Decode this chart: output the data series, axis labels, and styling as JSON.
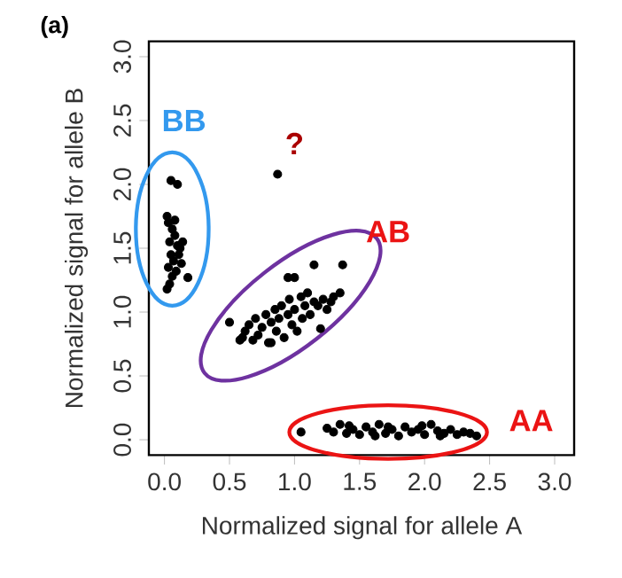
{
  "chart_data": {
    "type": "scatter",
    "xlabel": "Normalized signal for allele A",
    "ylabel": "Normalized signal for allele B",
    "annotations": [
      "(a)",
      "BB",
      "?",
      "AB",
      "AA"
    ],
    "x": [
      0.05,
      0.1,
      0.02,
      0.03,
      0.06,
      0.08,
      0.04,
      0.1,
      0.12,
      0.05,
      0.07,
      0.03,
      0.09,
      0.11,
      0.06,
      0.04,
      0.08,
      0.18,
      0.02,
      0.14,
      0.13,
      0.5,
      0.58,
      0.6,
      0.62,
      0.65,
      0.68,
      0.7,
      0.72,
      0.75,
      0.78,
      0.8,
      0.82,
      0.85,
      0.86,
      0.88,
      0.9,
      0.92,
      0.95,
      0.96,
      0.98,
      1.0,
      1.02,
      1.05,
      1.06,
      1.08,
      1.1,
      1.12,
      1.15,
      1.18,
      1.2,
      1.22,
      1.25,
      1.28,
      1.3,
      1.35,
      1.15,
      1.37,
      0.95,
      1.0,
      0.82,
      1.05,
      1.25,
      1.3,
      1.35,
      1.4,
      1.45,
      1.5,
      1.55,
      1.6,
      1.65,
      1.7,
      1.75,
      1.8,
      1.85,
      1.9,
      1.95,
      2.0,
      2.05,
      2.1,
      2.15,
      2.2,
      2.25,
      2.3,
      2.35,
      2.4,
      1.42,
      1.72,
      1.98,
      1.62,
      2.12,
      0.87
    ],
    "values": [
      2.03,
      2.0,
      1.75,
      1.7,
      1.65,
      1.6,
      1.55,
      1.52,
      1.5,
      1.45,
      1.4,
      1.35,
      1.32,
      1.45,
      1.28,
      1.22,
      1.72,
      1.27,
      1.18,
      1.55,
      1.38,
      0.92,
      0.78,
      0.8,
      0.85,
      0.9,
      0.78,
      0.95,
      0.82,
      0.88,
      0.98,
      0.76,
      0.92,
      1.02,
      0.85,
      0.95,
      1.05,
      0.8,
      0.98,
      1.1,
      0.9,
      1.02,
      0.85,
      1.12,
      0.95,
      1.05,
      1.15,
      0.98,
      1.08,
      1.05,
      0.87,
      1.1,
      1.02,
      1.08,
      1.12,
      1.15,
      1.37,
      1.37,
      1.27,
      1.27,
      0.76,
      0.06,
      0.09,
      0.06,
      0.12,
      0.05,
      0.08,
      0.04,
      0.1,
      0.06,
      0.12,
      0.05,
      0.08,
      0.03,
      0.1,
      0.06,
      0.08,
      0.04,
      0.12,
      0.07,
      0.05,
      0.08,
      0.04,
      0.06,
      0.05,
      0.03,
      0.11,
      0.1,
      0.11,
      0.03,
      0.03,
      2.08
    ],
    "color": "#000000",
    "xlim": [
      -0.12,
      3.15
    ],
    "ylim": [
      -0.12,
      3.12
    ],
    "xticks": [
      {
        "value": 0,
        "label": "0.0"
      },
      {
        "value": 0.5,
        "label": "0.5"
      },
      {
        "value": 1,
        "label": "1.0"
      },
      {
        "value": 1.5,
        "label": "1.5"
      },
      {
        "value": 2,
        "label": "2.0"
      },
      {
        "value": 2.5,
        "label": "2.5"
      },
      {
        "value": 3,
        "label": "3.0"
      }
    ],
    "yticks": [
      {
        "value": 0,
        "label": "0.0"
      },
      {
        "value": 0.5,
        "label": "0.5"
      },
      {
        "value": 1,
        "label": "1.0"
      },
      {
        "value": 1.5,
        "label": "1.5"
      },
      {
        "value": 2,
        "label": "2.0"
      },
      {
        "value": 2.5,
        "label": "2.5"
      },
      {
        "value": 3,
        "label": "3.0"
      }
    ]
  }
}
